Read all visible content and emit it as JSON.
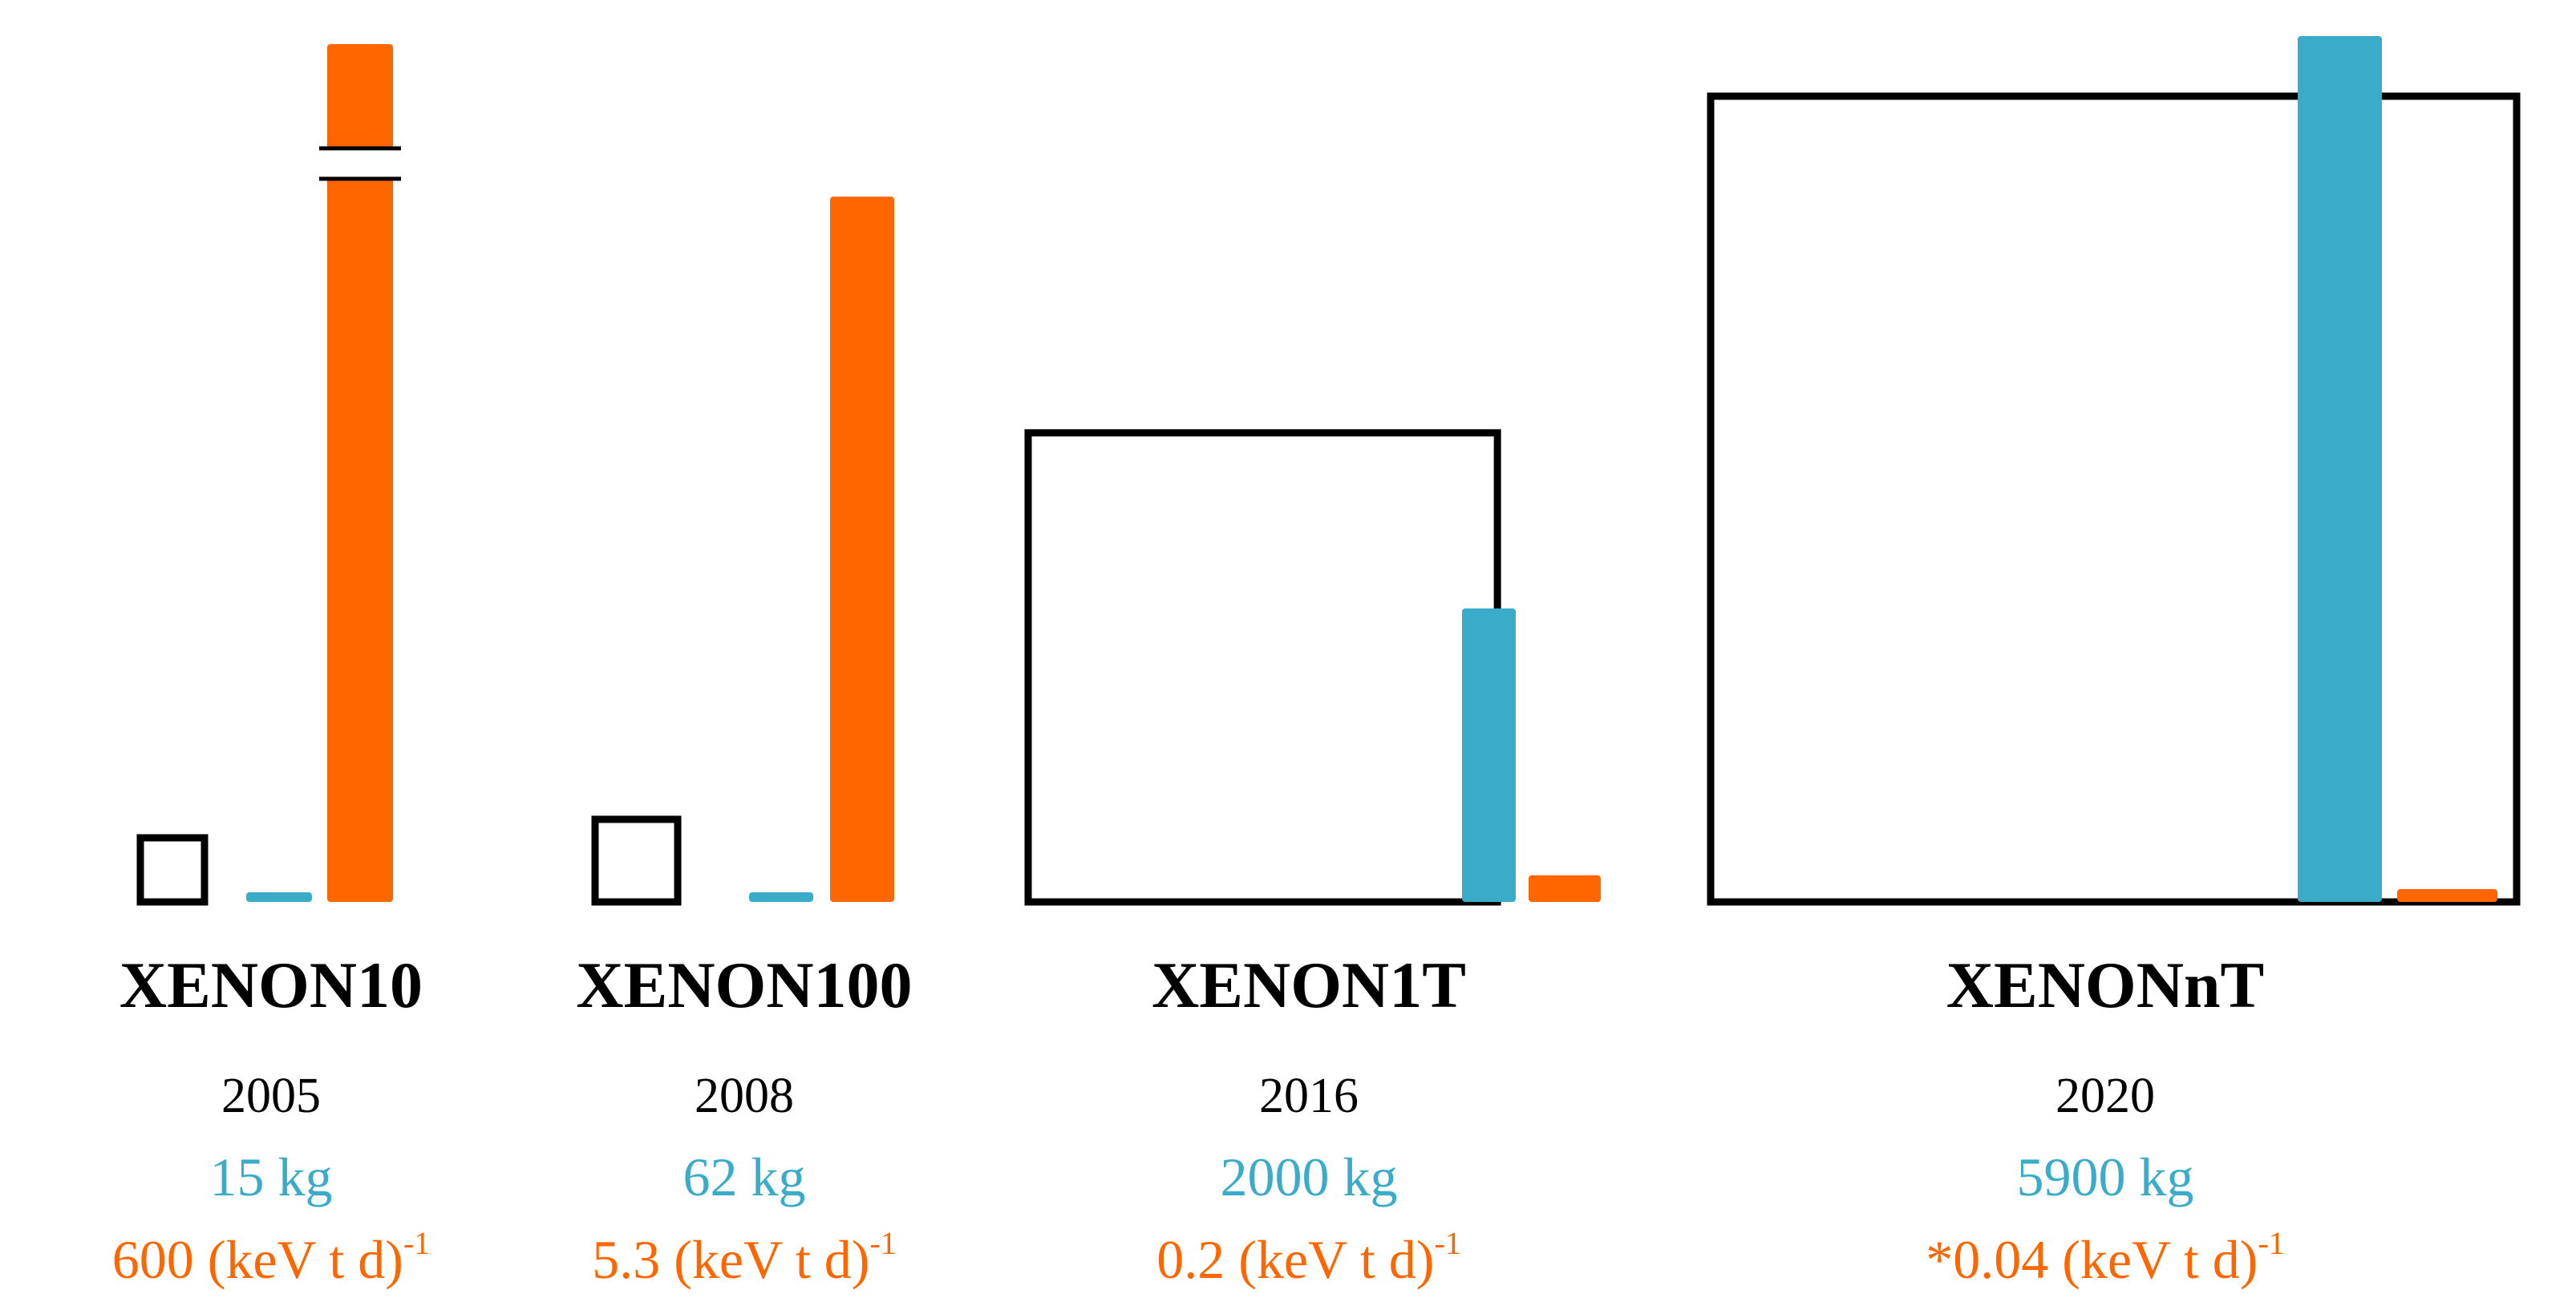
{
  "chart_data": {
    "type": "bar",
    "title": "",
    "xlabel": "",
    "ylabel": "",
    "colors": {
      "mass": "#3aabc9",
      "background": "#ff6600",
      "outline": "#000000"
    },
    "mass_units": "kg",
    "background_units": "(keV t d)",
    "background_exponent": "-1",
    "experiments": [
      {
        "name": "XENON10",
        "year": "2005",
        "mass": 15,
        "mass_label": "15 kg",
        "background": 600,
        "background_label": "600",
        "axis_break": true
      },
      {
        "name": "XENON100",
        "year": "2008",
        "mass": 62,
        "mass_label": "62 kg",
        "background": 5.3,
        "background_label": "5.3",
        "axis_break": false
      },
      {
        "name": "XENON1T",
        "year": "2016",
        "mass": 2000,
        "mass_label": "2000 kg",
        "background": 0.2,
        "background_label": "0.2",
        "axis_break": false
      },
      {
        "name": "XENONnT",
        "year": "2020",
        "mass": 5900,
        "mass_label": "5900 kg",
        "background": 0.04,
        "background_label": "*0.04",
        "axis_break": false
      }
    ]
  }
}
